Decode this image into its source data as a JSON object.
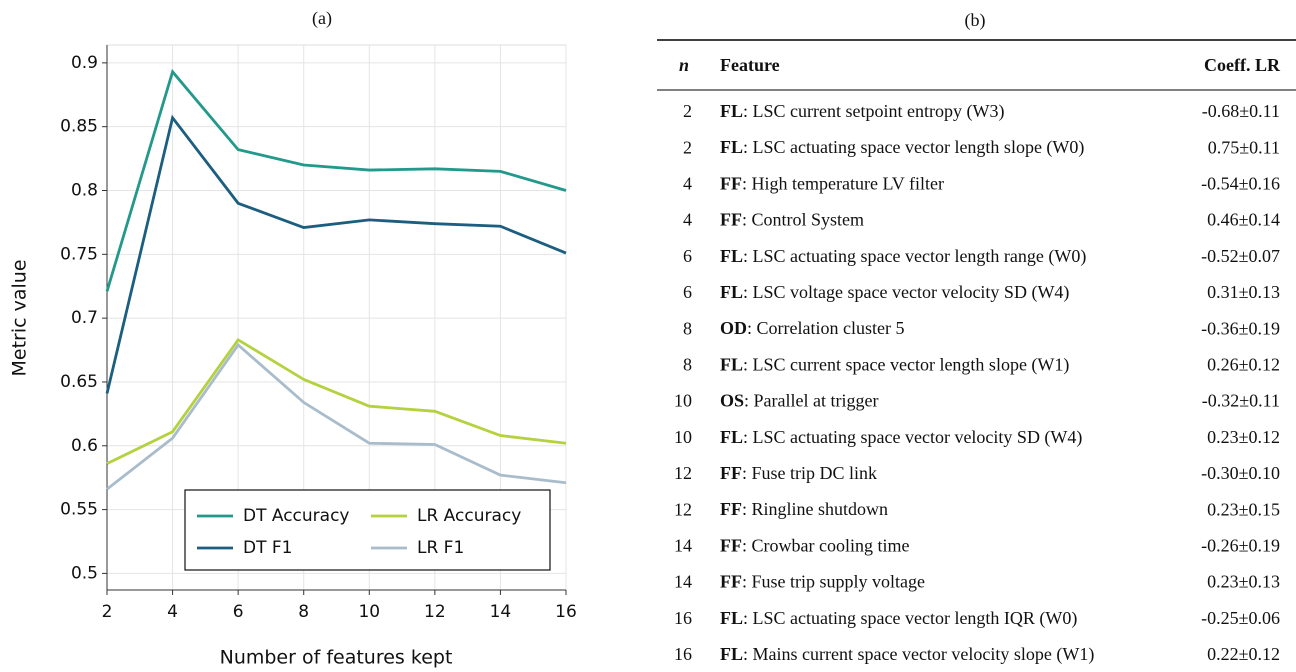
{
  "chart_data": {
    "type": "line",
    "title": "(a)",
    "x_label": "Number of features kept",
    "y_label": "Metric value",
    "x": [
      2,
      4,
      6,
      8,
      10,
      12,
      14,
      16
    ],
    "xlim": [
      2,
      16
    ],
    "xticks": [
      2,
      4,
      6,
      8,
      10,
      12,
      14,
      16
    ],
    "ylim": [
      0.487,
      0.914
    ],
    "yticks": [
      0.5,
      0.55,
      0.6,
      0.65,
      0.7,
      0.75,
      0.8,
      0.85,
      0.9
    ],
    "grid": true,
    "legend": "lower right",
    "series": [
      {
        "name": "DT Accuracy",
        "color": "#22998a",
        "values": [
          0.721,
          0.893,
          0.832,
          0.82,
          0.816,
          0.817,
          0.815,
          0.8
        ]
      },
      {
        "name": "LR Accuracy",
        "color": "#b4d23e",
        "values": [
          0.586,
          0.611,
          0.683,
          0.652,
          0.631,
          0.627,
          0.608,
          0.602
        ]
      },
      {
        "name": "DT F1",
        "color": "#1b5e80",
        "values": [
          0.641,
          0.857,
          0.79,
          0.771,
          0.777,
          0.774,
          0.772,
          0.751
        ]
      },
      {
        "name": "LR F1",
        "color": "#a9bccb",
        "values": [
          0.566,
          0.606,
          0.679,
          0.634,
          0.602,
          0.601,
          0.577,
          0.571
        ]
      }
    ]
  },
  "table": {
    "title": "(b)",
    "header": [
      "n",
      "Feature",
      "Coeff. LR"
    ],
    "rows": [
      [
        2,
        {
          "code": "FL",
          "text": ": LSC current setpoint entropy (W3)"
        },
        "-0.68±0.11"
      ],
      [
        2,
        {
          "code": "FL",
          "text": ": LSC actuating space vector length slope (W0)"
        },
        "0.75±0.11"
      ],
      [
        4,
        {
          "code": "FF",
          "text": ": High temperature LV filter"
        },
        "-0.54±0.16"
      ],
      [
        4,
        {
          "code": "FF",
          "text": ": Control System"
        },
        "0.46±0.14"
      ],
      [
        6,
        {
          "code": "FL",
          "text": ": LSC actuating space vector length range (W0)"
        },
        "-0.52±0.07"
      ],
      [
        6,
        {
          "code": "FL",
          "text": ": LSC voltage space vector velocity SD (W4)"
        },
        "0.31±0.13"
      ],
      [
        8,
        {
          "code": "OD",
          "text": ": Correlation cluster 5"
        },
        "-0.36±0.19"
      ],
      [
        8,
        {
          "code": "FL",
          "text": ": LSC current space vector length slope (W1)"
        },
        "0.26±0.12"
      ],
      [
        10,
        {
          "code": "OS",
          "text": ": Parallel at trigger"
        },
        "-0.32±0.11"
      ],
      [
        10,
        {
          "code": "FL",
          "text": ": LSC actuating space vector velocity SD (W4)"
        },
        "0.23±0.12"
      ],
      [
        12,
        {
          "code": "FF",
          "text": ": Fuse trip DC link"
        },
        "-0.30±0.10"
      ],
      [
        12,
        {
          "code": "FF",
          "text": ": Ringline shutdown"
        },
        "0.23±0.15"
      ],
      [
        14,
        {
          "code": "FF",
          "text": ": Crowbar cooling time"
        },
        "-0.26±0.19"
      ],
      [
        14,
        {
          "code": "FF",
          "text": ": Fuse trip supply voltage"
        },
        "0.23±0.13"
      ],
      [
        16,
        {
          "code": "FL",
          "text": ": LSC actuating space vector length IQR (W0)"
        },
        "-0.25±0.06"
      ],
      [
        16,
        {
          "code": "FL",
          "text": ": Mains current space vector velocity slope (W1)"
        },
        "0.22±0.12"
      ]
    ]
  }
}
